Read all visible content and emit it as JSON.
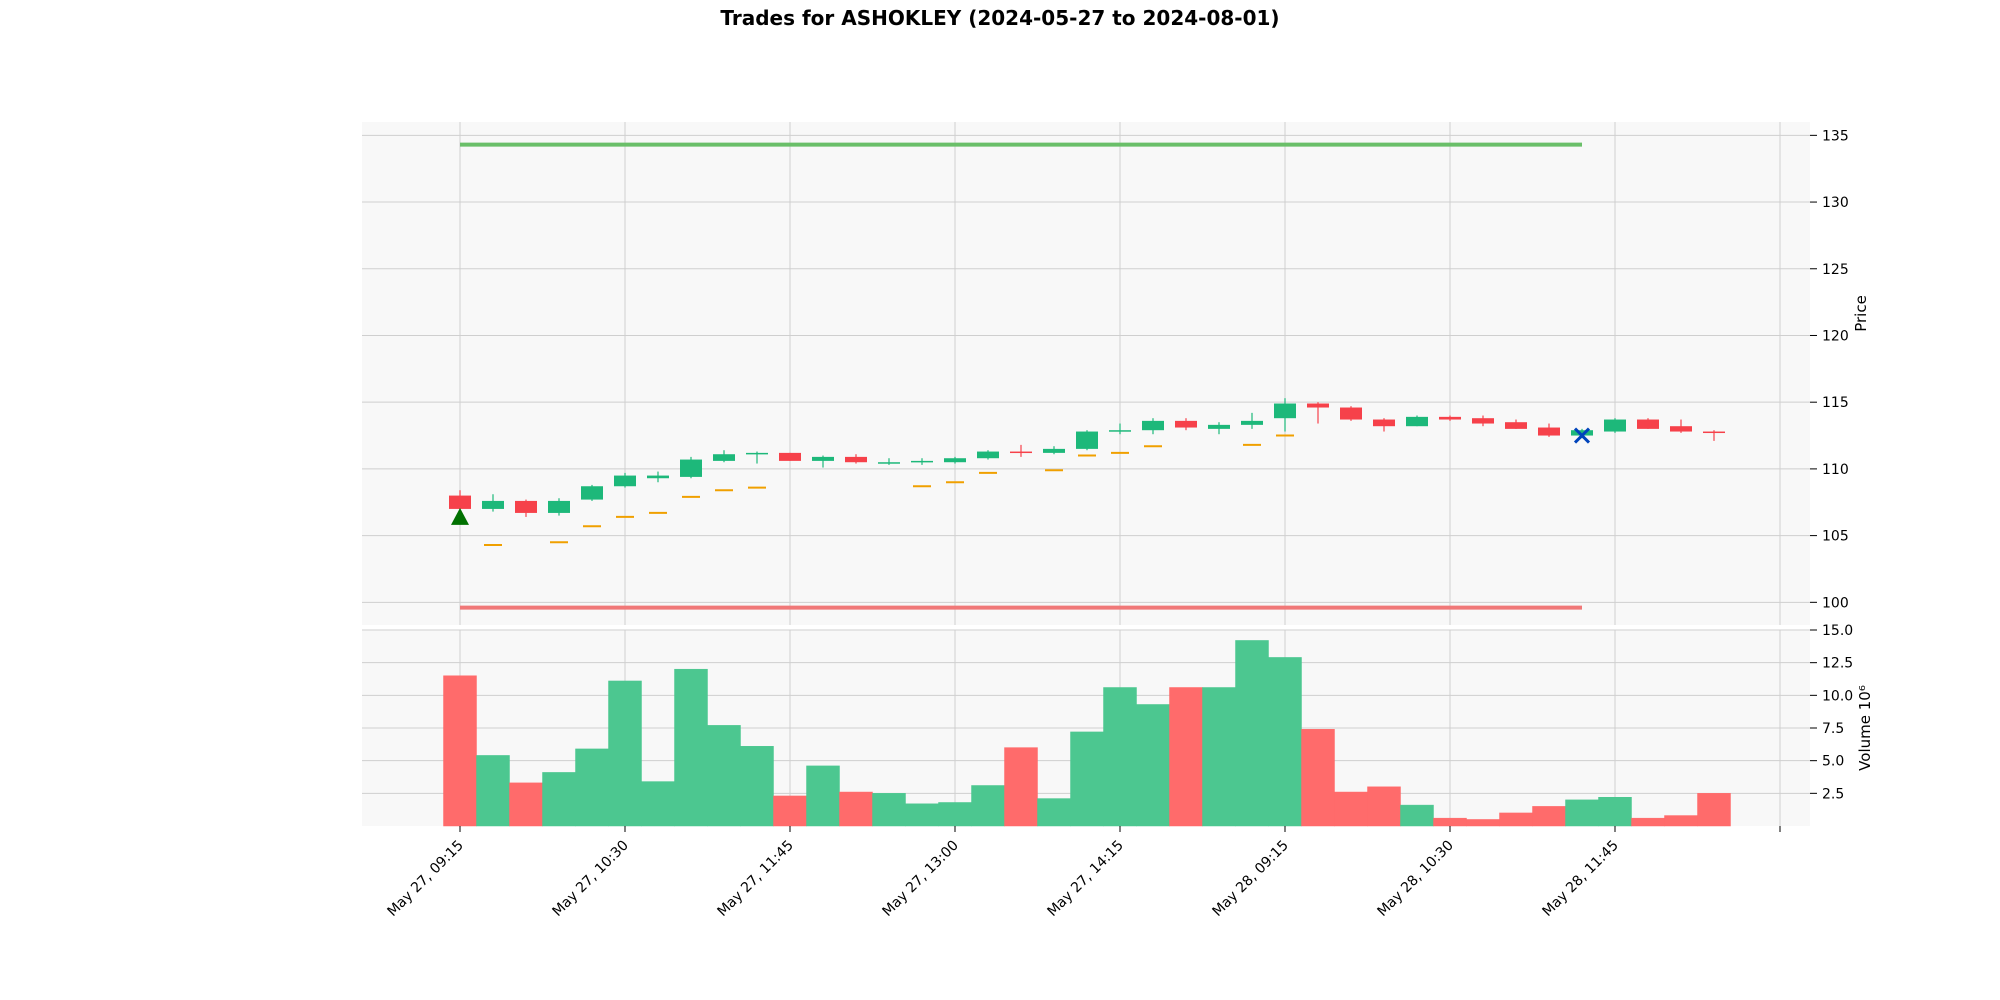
{
  "chart_data": {
    "type": "candlestick",
    "title": "Trades for ASHOKLEY (2024-05-27 to 2024-08-01)",
    "x_tick_labels": [
      "May 27, 09:15",
      "May 27, 10:30",
      "May 27, 11:45",
      "May 27, 13:00",
      "May 27, 14:15",
      "May 28, 09:15",
      "May 28, 10:30",
      "May 28, 11:45"
    ],
    "price_panel": {
      "ylabel": "Price",
      "ylim": [
        98.3,
        136.0
      ],
      "yticks": [
        100,
        105,
        110,
        115,
        120,
        125,
        130,
        135
      ]
    },
    "volume_panel": {
      "ylabel": "Volume  10⁶",
      "ylim": [
        0,
        15.0
      ],
      "yticks": [
        2.5,
        5.0,
        7.5,
        10.0,
        12.5,
        15.0
      ]
    },
    "candles": [
      {
        "o": 108.0,
        "h": 108.4,
        "l": 107.0,
        "c": 107.0,
        "v": 11.5,
        "m": null
      },
      {
        "o": 107.0,
        "h": 108.1,
        "l": 106.8,
        "c": 107.6,
        "v": 5.4,
        "m": 104.3
      },
      {
        "o": 107.6,
        "h": 107.7,
        "l": 106.4,
        "c": 106.7,
        "v": 3.3,
        "m": null
      },
      {
        "o": 106.7,
        "h": 107.8,
        "l": 106.5,
        "c": 107.6,
        "v": 4.1,
        "m": 104.5
      },
      {
        "o": 107.7,
        "h": 108.8,
        "l": 107.6,
        "c": 108.7,
        "v": 5.9,
        "m": 105.7
      },
      {
        "o": 108.7,
        "h": 109.7,
        "l": 108.6,
        "c": 109.5,
        "v": 11.1,
        "m": 106.4
      },
      {
        "o": 109.3,
        "h": 109.8,
        "l": 109.0,
        "c": 109.5,
        "v": 3.4,
        "m": 106.7
      },
      {
        "o": 109.4,
        "h": 110.9,
        "l": 109.3,
        "c": 110.7,
        "v": 12.0,
        "m": 107.9
      },
      {
        "o": 110.6,
        "h": 111.4,
        "l": 110.5,
        "c": 111.1,
        "v": 7.7,
        "m": 108.4
      },
      {
        "o": 111.1,
        "h": 111.3,
        "l": 110.4,
        "c": 111.2,
        "v": 6.1,
        "m": 108.6
      },
      {
        "o": 111.2,
        "h": 111.2,
        "l": 110.6,
        "c": 110.6,
        "v": 2.3,
        "m": null
      },
      {
        "o": 110.6,
        "h": 111.0,
        "l": 110.1,
        "c": 110.9,
        "v": 4.6,
        "m": null
      },
      {
        "o": 110.9,
        "h": 111.1,
        "l": 110.4,
        "c": 110.5,
        "v": 2.6,
        "m": null
      },
      {
        "o": 110.5,
        "h": 110.8,
        "l": 110.3,
        "c": 110.5,
        "v": 2.5,
        "m": null
      },
      {
        "o": 110.5,
        "h": 110.8,
        "l": 110.3,
        "c": 110.6,
        "v": 1.7,
        "m": 108.7
      },
      {
        "o": 110.5,
        "h": 110.9,
        "l": 110.4,
        "c": 110.8,
        "v": 1.8,
        "m": 109.0
      },
      {
        "o": 110.8,
        "h": 111.4,
        "l": 110.7,
        "c": 111.3,
        "v": 3.1,
        "m": 109.7
      },
      {
        "o": 111.3,
        "h": 111.8,
        "l": 110.9,
        "c": 111.2,
        "v": 6.0,
        "m": null
      },
      {
        "o": 111.2,
        "h": 111.7,
        "l": 111.1,
        "c": 111.5,
        "v": 2.1,
        "m": 109.9
      },
      {
        "o": 111.5,
        "h": 112.9,
        "l": 111.4,
        "c": 112.8,
        "v": 7.2,
        "m": 111.0
      },
      {
        "o": 112.8,
        "h": 113.4,
        "l": 112.6,
        "c": 112.9,
        "v": 10.6,
        "m": 111.2
      },
      {
        "o": 112.9,
        "h": 113.8,
        "l": 112.6,
        "c": 113.6,
        "v": 9.3,
        "m": 111.7
      },
      {
        "o": 113.6,
        "h": 113.8,
        "l": 112.9,
        "c": 113.1,
        "v": 10.6,
        "m": null
      },
      {
        "o": 113.0,
        "h": 113.5,
        "l": 112.6,
        "c": 113.3,
        "v": 10.6,
        "m": null
      },
      {
        "o": 113.3,
        "h": 114.2,
        "l": 113.0,
        "c": 113.6,
        "v": 14.2,
        "m": 111.8
      },
      {
        "o": 113.8,
        "h": 115.3,
        "l": 112.8,
        "c": 114.9,
        "v": 12.9,
        "m": 112.5
      },
      {
        "o": 114.9,
        "h": 115.0,
        "l": 113.4,
        "c": 114.6,
        "v": 7.4,
        "m": null
      },
      {
        "o": 114.6,
        "h": 114.7,
        "l": 113.6,
        "c": 113.7,
        "v": 2.6,
        "m": null
      },
      {
        "o": 113.7,
        "h": 113.8,
        "l": 112.8,
        "c": 113.2,
        "v": 3.0,
        "m": null
      },
      {
        "o": 113.2,
        "h": 114.0,
        "l": 113.2,
        "c": 113.9,
        "v": 1.6,
        "m": null
      },
      {
        "o": 113.9,
        "h": 114.0,
        "l": 113.6,
        "c": 113.7,
        "v": 0.6,
        "m": null
      },
      {
        "o": 113.8,
        "h": 114.0,
        "l": 113.2,
        "c": 113.4,
        "v": 0.5,
        "m": null
      },
      {
        "o": 113.5,
        "h": 113.7,
        "l": 113.0,
        "c": 113.0,
        "v": 1.0,
        "m": null
      },
      {
        "o": 113.1,
        "h": 113.4,
        "l": 112.4,
        "c": 112.5,
        "v": 1.5,
        "m": null
      },
      {
        "o": 112.5,
        "h": 113.0,
        "l": 112.3,
        "c": 112.9,
        "v": 2.0,
        "m": null
      },
      {
        "o": 112.8,
        "h": 113.8,
        "l": 112.7,
        "c": 113.7,
        "v": 2.2,
        "m": null
      },
      {
        "o": 113.7,
        "h": 113.8,
        "l": 113.0,
        "c": 113.0,
        "v": 0.6,
        "m": null
      },
      {
        "o": 113.2,
        "h": 113.7,
        "l": 112.7,
        "c": 112.8,
        "v": 0.8,
        "m": null
      },
      {
        "o": 112.8,
        "h": 112.9,
        "l": 112.1,
        "c": 112.7,
        "v": 2.5,
        "m": null
      }
    ],
    "entry_marker": {
      "index": 0,
      "price": 106.4,
      "shape": "triangle-up"
    },
    "exit_marker": {
      "index": 34,
      "price": 112.5,
      "shape": "x"
    },
    "target_line": {
      "price": 134.3,
      "from_index": 0,
      "to_index": 34
    },
    "stop_line": {
      "price": 99.6,
      "from_index": 0,
      "to_index": 34
    },
    "colors": {
      "up": "#1db87a",
      "down": "#f6414a",
      "volume_up": "#4cc790",
      "volume_down": "#ff6b6b",
      "ma": "#f0a000",
      "target": "#6abf69",
      "stop": "#f07878",
      "entry": "#007000",
      "exit": "#0044bb",
      "panel_bg": "#f8f8f8",
      "grid": "#cfcfcf"
    },
    "grid": true
  }
}
